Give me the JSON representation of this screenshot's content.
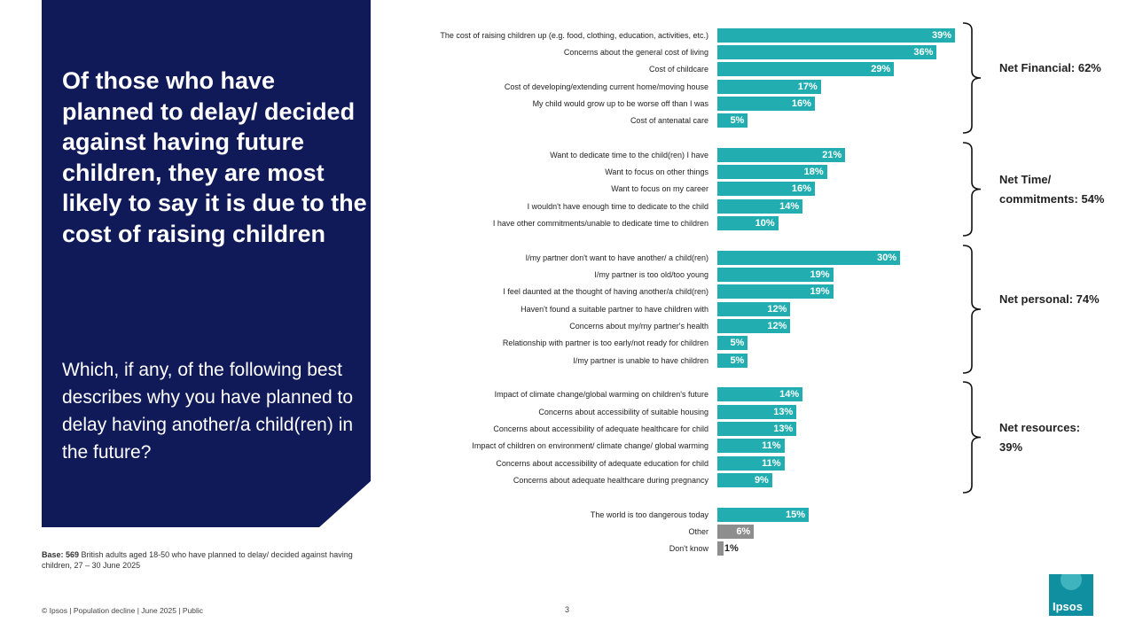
{
  "headline": "Of those who have planned to delay/ decided against having future children, they are most likely to say it is due to the cost of raising children",
  "question": "Which, if any, of the following best describes why you have planned to delay having another/a child(ren) in the future?",
  "base": {
    "bold": "Base: 569",
    "text": " British adults aged 18-50 who have planned to delay/ decided against having children, 27 – 30 June 2025"
  },
  "footer": "© Ipsos | Population decline | June 2025 | Public",
  "page_number": "3",
  "logo_text": "Ipsos",
  "colors": {
    "bar_primary": "#22aeb0",
    "bar_other": "#8e8e8e",
    "panel": "#111a58"
  },
  "chart_data": {
    "type": "bar",
    "orientation": "horizontal",
    "unit": "%",
    "xlim": [
      0,
      39
    ],
    "categories": [
      "The cost of raising children up (e.g. food, clothing, education, activities, etc.)",
      "Concerns about the general cost of living",
      "Cost of childcare",
      "Cost of developing/extending current home/moving house",
      "My child would grow up to be worse off than I was",
      "Cost of antenatal care",
      "Want to dedicate time to the child(ren) I have",
      "Want to focus on other things",
      "Want to focus on my career",
      "I wouldn't have enough time to dedicate to the child",
      "I have other commitments/unable to dedicate time to children",
      "I/my partner don't want to have another/ a child(ren)",
      "I/my partner is too old/too young",
      "I feel daunted at the thought of having another/a child(ren)",
      "Haven't found a suitable partner to have children with",
      "Concerns about my/my partner's health",
      "Relationship with partner is too early/not ready for children",
      "I/my partner is unable to have children",
      "Impact of climate change/global warming on children's future",
      "Concerns about accessibility of suitable housing",
      "Concerns about accessibility of adequate healthcare for child",
      "Impact of children on environment/ climate change/ global warming",
      "Concerns about accessibility of adequate education for child",
      "Concerns about adequate healthcare during pregnancy",
      "The world is too dangerous today",
      "Other",
      "Don't know"
    ],
    "values": [
      39,
      36,
      29,
      17,
      16,
      5,
      21,
      18,
      16,
      14,
      10,
      30,
      19,
      19,
      12,
      12,
      5,
      5,
      14,
      13,
      13,
      11,
      11,
      9,
      15,
      6,
      1
    ],
    "value_labels": [
      "39%",
      "36%",
      "29%",
      "17%",
      "16%",
      "5%",
      "21%",
      "18%",
      "16%",
      "14%",
      "10%",
      "30%",
      "19%",
      "19%",
      "12%",
      "12%",
      "5%",
      "5%",
      "14%",
      "13%",
      "13%",
      "11%",
      "11%",
      "9%",
      "15%",
      "6%",
      "1%"
    ],
    "bar_color_keys": [
      "p",
      "p",
      "p",
      "p",
      "p",
      "p",
      "p",
      "p",
      "p",
      "p",
      "p",
      "p",
      "p",
      "p",
      "p",
      "p",
      "p",
      "p",
      "p",
      "p",
      "p",
      "p",
      "p",
      "p",
      "p",
      "o",
      "o"
    ],
    "nets": [
      {
        "label": "Net Financial: 62%",
        "first": 0,
        "last": 5
      },
      {
        "label": "Net Time/ commitments: 54%",
        "first": 6,
        "last": 10
      },
      {
        "label": "Net personal: 74%",
        "first": 11,
        "last": 17
      },
      {
        "label": "Net resources: 39%",
        "first": 18,
        "last": 23
      }
    ]
  }
}
